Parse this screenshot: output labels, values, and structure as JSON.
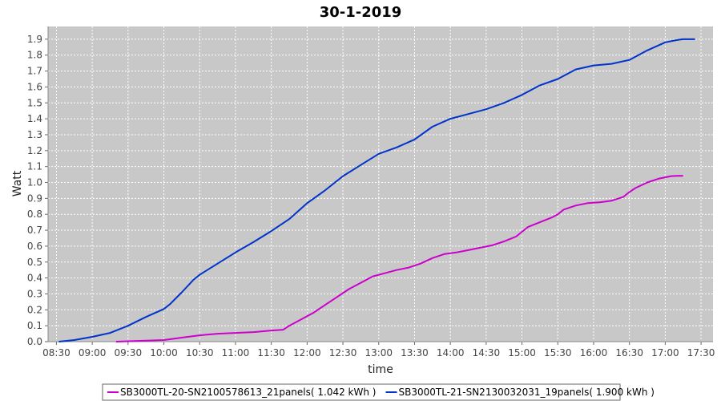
{
  "chart_data": {
    "type": "line",
    "title": "30-1-2019",
    "xlabel": "time",
    "ylabel": "Watt",
    "x_ticks": [
      "08:30",
      "09:00",
      "09:30",
      "10:00",
      "10:30",
      "11:00",
      "11:30",
      "12:00",
      "12:30",
      "13:00",
      "13:30",
      "14:00",
      "14:30",
      "15:00",
      "15:30",
      "16:00",
      "16:30",
      "17:00",
      "17:30"
    ],
    "y_ticks": [
      "0.0",
      "0.1",
      "0.2",
      "0.3",
      "0.4",
      "0.5",
      "0.6",
      "0.7",
      "0.8",
      "0.9",
      "1.0",
      "1.1",
      "1.2",
      "1.3",
      "1.4",
      "1.5",
      "1.6",
      "1.7",
      "1.8",
      "1.9"
    ],
    "xlim": [
      "08:23",
      "17:40"
    ],
    "ylim": [
      0,
      1.98
    ],
    "grid": true,
    "legend_position": "bottom",
    "background_color": "#c8c8c8",
    "series": [
      {
        "name": "SB3000TL-20-SN2100578613_21panels( 1.042 kWh )",
        "color": "#cc00cc",
        "x": [
          "09:20",
          "09:40",
          "10:00",
          "10:10",
          "10:20",
          "10:30",
          "10:45",
          "11:00",
          "11:15",
          "11:30",
          "11:40",
          "11:45",
          "11:55",
          "12:05",
          "12:15",
          "12:25",
          "12:35",
          "12:45",
          "12:55",
          "13:05",
          "13:15",
          "13:25",
          "13:35",
          "13:45",
          "13:55",
          "14:05",
          "14:15",
          "14:25",
          "14:35",
          "14:45",
          "14:55",
          "15:00",
          "15:05",
          "15:15",
          "15:25",
          "15:30",
          "15:35",
          "15:45",
          "15:55",
          "16:05",
          "16:15",
          "16:25",
          "16:30",
          "16:35",
          "16:45",
          "16:55",
          "17:05",
          "17:10",
          "17:15"
        ],
        "y": [
          0.0,
          0.005,
          0.01,
          0.02,
          0.03,
          0.04,
          0.05,
          0.055,
          0.06,
          0.07,
          0.075,
          0.1,
          0.14,
          0.18,
          0.23,
          0.28,
          0.33,
          0.37,
          0.41,
          0.43,
          0.45,
          0.465,
          0.49,
          0.525,
          0.55,
          0.56,
          0.575,
          0.59,
          0.605,
          0.63,
          0.66,
          0.69,
          0.72,
          0.75,
          0.78,
          0.8,
          0.83,
          0.855,
          0.87,
          0.875,
          0.885,
          0.91,
          0.94,
          0.965,
          1.0,
          1.025,
          1.04,
          1.042,
          1.042
        ]
      },
      {
        "name": "SB3000TL-21-SN2130032031_19panels( 1.900 kWh )",
        "color": "#0033cc",
        "x": [
          "08:32",
          "08:45",
          "09:00",
          "09:15",
          "09:30",
          "09:45",
          "10:00",
          "10:05",
          "10:15",
          "10:25",
          "10:30",
          "10:45",
          "11:00",
          "11:15",
          "11:30",
          "11:45",
          "12:00",
          "12:15",
          "12:30",
          "12:45",
          "13:00",
          "13:15",
          "13:30",
          "13:45",
          "14:00",
          "14:15",
          "14:30",
          "14:45",
          "15:00",
          "15:15",
          "15:30",
          "15:45",
          "16:00",
          "16:15",
          "16:30",
          "16:45",
          "17:00",
          "17:10",
          "17:15",
          "17:25"
        ],
        "y": [
          0.0,
          0.01,
          0.03,
          0.055,
          0.1,
          0.155,
          0.205,
          0.235,
          0.31,
          0.39,
          0.42,
          0.49,
          0.56,
          0.625,
          0.695,
          0.77,
          0.87,
          0.95,
          1.04,
          1.11,
          1.18,
          1.22,
          1.27,
          1.35,
          1.4,
          1.43,
          1.46,
          1.5,
          1.55,
          1.61,
          1.65,
          1.71,
          1.735,
          1.745,
          1.77,
          1.83,
          1.88,
          1.895,
          1.9,
          1.9
        ]
      }
    ]
  }
}
